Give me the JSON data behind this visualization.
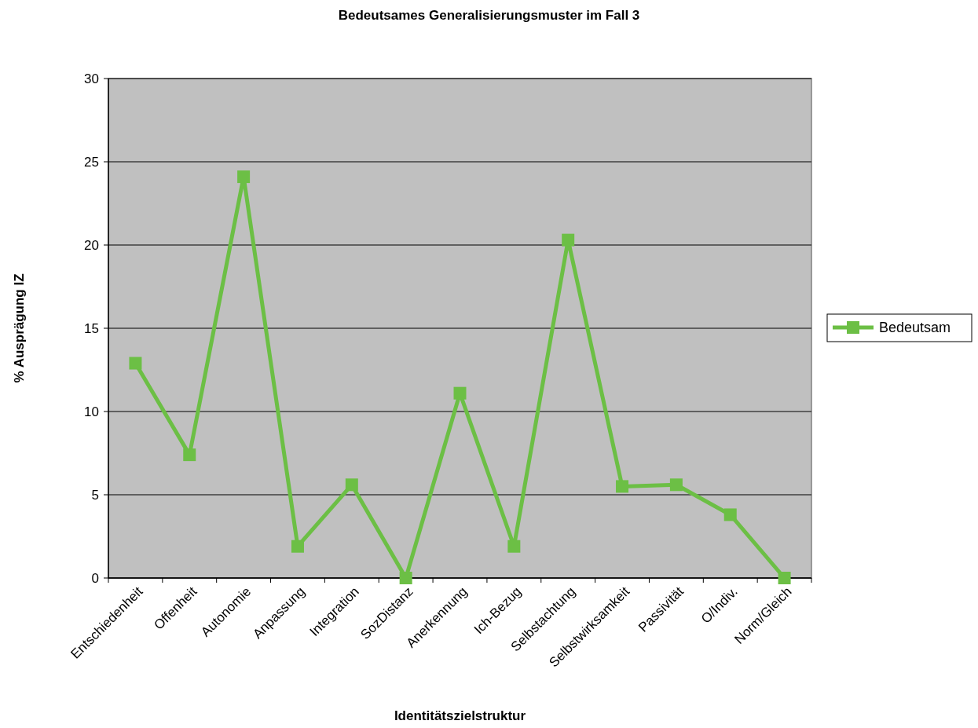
{
  "chart_data": {
    "type": "line",
    "title": "Bedeutsames Generalisierungsmuster im Fall 3",
    "xlabel": "Identitätszielstruktur",
    "ylabel": "% Ausprägung IZ",
    "categories": [
      "Entschiedenheit",
      "Offenheit",
      "Autonomie",
      "Anpassung",
      "Integration",
      "SozDistanz",
      "Anerkennung",
      "Ich-Bezug",
      "Selbstachtung",
      "Selbstwirksamkeit",
      "Passivität",
      "O/Indiv.",
      "Norm/Gleich"
    ],
    "series": [
      {
        "name": "Bedeutsam",
        "color": "#6cbf45",
        "values": [
          12.9,
          7.4,
          24.1,
          1.9,
          5.6,
          0,
          11.1,
          1.9,
          20.3,
          5.5,
          5.6,
          3.8,
          0
        ]
      }
    ],
    "ylim": [
      0,
      30
    ],
    "yticks": [
      0,
      5,
      10,
      15,
      20,
      25,
      30
    ],
    "grid": "y",
    "legend": "right",
    "marker": "square",
    "line_style": "solid"
  }
}
